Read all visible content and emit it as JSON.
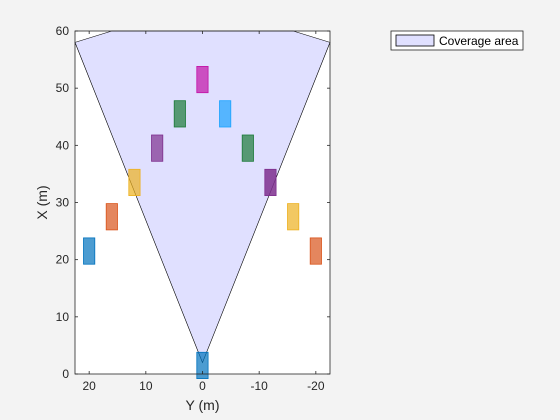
{
  "chart_data": {
    "type": "area",
    "title": "",
    "xlabel": "Y (m)",
    "ylabel": "X (m)",
    "xlim": [
      22.5,
      -22.5
    ],
    "ylim": [
      0,
      60
    ],
    "x_reversed": true,
    "x_ticks": [
      20,
      10,
      0,
      -10,
      -20
    ],
    "x_tick_labels": [
      "20",
      "10",
      "0",
      "-10",
      "-20"
    ],
    "y_ticks": [
      0,
      10,
      20,
      30,
      40,
      50,
      60
    ],
    "y_tick_labels": [
      "0",
      "10",
      "20",
      "30",
      "40",
      "50",
      "60"
    ],
    "grid": false,
    "legend": {
      "position": "top-right",
      "entries": [
        "Coverage area"
      ]
    },
    "coverage_area": {
      "name": "Coverage area",
      "fill": "#e0e0ff",
      "edge": "#000000",
      "origin": {
        "y": 0,
        "x": 2
      },
      "vertices": [
        {
          "y": 0,
          "x": 2
        },
        {
          "y": 22.5,
          "x": 58
        },
        {
          "y": 16,
          "x": 60
        },
        {
          "y": -16,
          "x": 60
        },
        {
          "y": -22.5,
          "x": 58
        }
      ]
    },
    "vehicles": [
      {
        "y": 0,
        "x": 1.5,
        "color": "#0072bd",
        "alpha": 0.7
      },
      {
        "y": 20,
        "x": 21.5,
        "color": "#0072bd",
        "alpha": 0.7
      },
      {
        "y": 16,
        "x": 27.5,
        "color": "#d95319",
        "alpha": 0.7
      },
      {
        "y": 12,
        "x": 33.5,
        "color": "#edb120",
        "alpha": 0.7
      },
      {
        "y": 8,
        "x": 39.5,
        "color": "#7e2f8e",
        "alpha": 0.7
      },
      {
        "y": 4,
        "x": 45.5,
        "color": "#1b7a38",
        "alpha": 0.7
      },
      {
        "y": 0,
        "x": 51.5,
        "color": "#c20fa6",
        "alpha": 0.7
      },
      {
        "y": -4,
        "x": 45.5,
        "color": "#1aa3ff",
        "alpha": 0.7
      },
      {
        "y": -8,
        "x": 39.5,
        "color": "#1b7a38",
        "alpha": 0.7
      },
      {
        "y": -12,
        "x": 33.5,
        "color": "#7e2f8e",
        "alpha": 0.85
      },
      {
        "y": -16,
        "x": 27.5,
        "color": "#edb120",
        "alpha": 0.7
      },
      {
        "y": -20,
        "x": 21.5,
        "color": "#d95319",
        "alpha": 0.7
      }
    ]
  }
}
